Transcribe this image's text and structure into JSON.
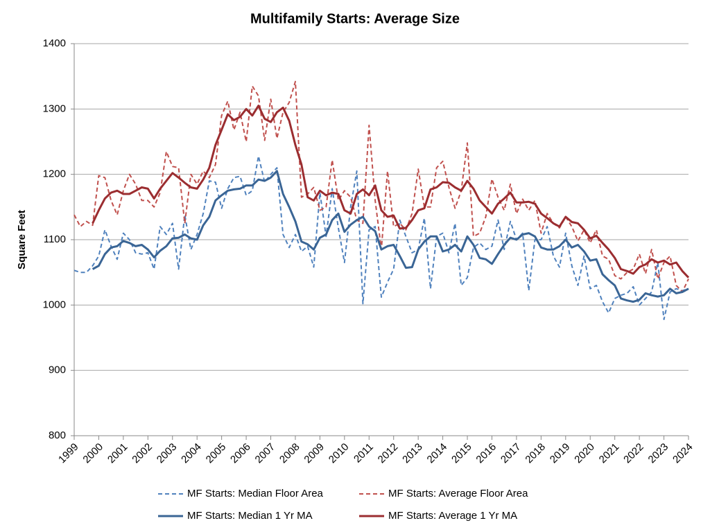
{
  "chart_data": {
    "type": "line",
    "title": "Multifamily Starts: Average Size",
    "y_label": "Square Feet",
    "x": [
      1999,
      1999.25,
      1999.5,
      1999.75,
      2000,
      2000.25,
      2000.5,
      2000.75,
      2001,
      2001.25,
      2001.5,
      2001.75,
      2002,
      2002.25,
      2002.5,
      2002.75,
      2003,
      2003.25,
      2003.5,
      2003.75,
      2004,
      2004.25,
      2004.5,
      2004.75,
      2005,
      2005.25,
      2005.5,
      2005.75,
      2006,
      2006.25,
      2006.5,
      2006.75,
      2007,
      2007.25,
      2007.5,
      2007.75,
      2008,
      2008.25,
      2008.5,
      2008.75,
      2009,
      2009.25,
      2009.5,
      2009.75,
      2010,
      2010.25,
      2010.5,
      2010.75,
      2011,
      2011.25,
      2011.5,
      2011.75,
      2012,
      2012.25,
      2012.5,
      2012.75,
      2013,
      2013.25,
      2013.5,
      2013.75,
      2014,
      2014.25,
      2014.5,
      2014.75,
      2015,
      2015.25,
      2015.5,
      2015.75,
      2016,
      2016.25,
      2016.5,
      2016.75,
      2017,
      2017.25,
      2017.5,
      2017.75,
      2018,
      2018.25,
      2018.5,
      2018.75,
      2019,
      2019.25,
      2019.5,
      2019.75,
      2020,
      2020.25,
      2020.5,
      2020.75,
      2021,
      2021.25,
      2021.5,
      2021.75,
      2022,
      2022.25,
      2022.5,
      2022.75,
      2023,
      2023.25,
      2023.5,
      2023.75,
      2024
    ],
    "series": [
      {
        "name": "MF Starts: Median Floor Area",
        "color": "#4f81bd",
        "dashed": true,
        "values": [
          1053,
          1050,
          1050,
          1060,
          1075,
          1115,
          1090,
          1070,
          1110,
          1100,
          1080,
          1078,
          1080,
          1055,
          1120,
          1108,
          1125,
          1055,
          1138,
          1085,
          1108,
          1140,
          1190,
          1188,
          1148,
          1178,
          1195,
          1197,
          1168,
          1175,
          1228,
          1188,
          1200,
          1210,
          1108,
          1088,
          1108,
          1082,
          1090,
          1058,
          1172,
          1105,
          1178,
          1118,
          1065,
          1150,
          1205,
          1002,
          1115,
          1120,
          1012,
          1035,
          1055,
          1130,
          1105,
          1080,
          1085,
          1133,
          1025,
          1105,
          1110,
          1080,
          1125,
          1030,
          1042,
          1088,
          1095,
          1085,
          1090,
          1130,
          1085,
          1128,
          1100,
          1110,
          1022,
          1100,
          1100,
          1120,
          1075,
          1058,
          1110,
          1060,
          1030,
          1075,
          1025,
          1030,
          1005,
          988,
          1010,
          1015,
          1018,
          1028,
          1000,
          1010,
          1020,
          1065,
          978,
          1020,
          1025,
          1022,
          1025
        ]
      },
      {
        "name": "MF Starts: Average Floor Area",
        "color": "#c0504d",
        "dashed": true,
        "values": [
          1138,
          1120,
          1128,
          1122,
          1198,
          1195,
          1160,
          1138,
          1175,
          1200,
          1185,
          1160,
          1160,
          1150,
          1172,
          1235,
          1212,
          1210,
          1125,
          1200,
          1185,
          1205,
          1195,
          1215,
          1290,
          1312,
          1268,
          1295,
          1250,
          1335,
          1320,
          1252,
          1315,
          1255,
          1295,
          1310,
          1342,
          1165,
          1170,
          1180,
          1145,
          1150,
          1222,
          1160,
          1175,
          1165,
          1130,
          1125,
          1275,
          1160,
          1085,
          1205,
          1120,
          1125,
          1115,
          1140,
          1208,
          1150,
          1150,
          1210,
          1220,
          1180,
          1148,
          1175,
          1248,
          1105,
          1110,
          1135,
          1193,
          1165,
          1145,
          1185,
          1140,
          1162,
          1145,
          1160,
          1110,
          1140,
          1125,
          1118,
          1135,
          1120,
          1098,
          1115,
          1095,
          1115,
          1075,
          1070,
          1045,
          1040,
          1050,
          1055,
          1078,
          1048,
          1085,
          1040,
          1065,
          1075,
          1030,
          1020,
          1040
        ]
      },
      {
        "name": "MF Starts: Median 1 Yr MA",
        "color": "#3a6595",
        "dashed": false,
        "values": [
          null,
          null,
          null,
          1055,
          1060,
          1078,
          1088,
          1090,
          1098,
          1095,
          1090,
          1092,
          1085,
          1073,
          1083,
          1090,
          1102,
          1103,
          1108,
          1102,
          1100,
          1122,
          1135,
          1160,
          1168,
          1175,
          1177,
          1178,
          1183,
          1183,
          1192,
          1190,
          1195,
          1205,
          1170,
          1150,
          1128,
          1097,
          1093,
          1085,
          1103,
          1108,
          1130,
          1140,
          1112,
          1123,
          1130,
          1135,
          1120,
          1113,
          1085,
          1090,
          1092,
          1075,
          1057,
          1058,
          1085,
          1097,
          1105,
          1105,
          1082,
          1085,
          1092,
          1082,
          1105,
          1092,
          1072,
          1070,
          1063,
          1078,
          1092,
          1103,
          1100,
          1108,
          1110,
          1105,
          1088,
          1085,
          1085,
          1090,
          1100,
          1088,
          1092,
          1082,
          1068,
          1070,
          1047,
          1038,
          1030,
          1010,
          1007,
          1005,
          1008,
          1018,
          1015,
          1013,
          1015,
          1025,
          1018,
          1020,
          1025
        ]
      },
      {
        "name": "MF Starts: Average 1 Yr MA",
        "color": "#9b2d30",
        "dashed": false,
        "values": [
          null,
          null,
          null,
          1125,
          1145,
          1163,
          1172,
          1175,
          1170,
          1170,
          1175,
          1180,
          1178,
          1163,
          1178,
          1190,
          1202,
          1195,
          1187,
          1180,
          1178,
          1192,
          1210,
          1245,
          1268,
          1292,
          1283,
          1288,
          1300,
          1290,
          1305,
          1285,
          1280,
          1295,
          1302,
          1282,
          1245,
          1215,
          1165,
          1160,
          1175,
          1168,
          1172,
          1170,
          1145,
          1140,
          1170,
          1177,
          1168,
          1183,
          1145,
          1135,
          1137,
          1117,
          1118,
          1130,
          1145,
          1148,
          1177,
          1180,
          1188,
          1187,
          1180,
          1175,
          1190,
          1178,
          1160,
          1150,
          1140,
          1155,
          1163,
          1172,
          1157,
          1157,
          1158,
          1155,
          1140,
          1133,
          1125,
          1120,
          1135,
          1127,
          1125,
          1115,
          1102,
          1106,
          1095,
          1085,
          1072,
          1055,
          1052,
          1048,
          1058,
          1062,
          1070,
          1065,
          1068,
          1062,
          1065,
          1052,
          1042
        ]
      }
    ],
    "xlim": [
      1999,
      2024
    ],
    "xticks": [
      1999,
      2000,
      2001,
      2002,
      2003,
      2004,
      2005,
      2006,
      2007,
      2008,
      2009,
      2010,
      2011,
      2012,
      2013,
      2014,
      2015,
      2016,
      2017,
      2018,
      2019,
      2020,
      2021,
      2022,
      2023,
      2024
    ],
    "ylim": [
      800,
      1400
    ],
    "yticks": [
      800,
      900,
      1000,
      1100,
      1200,
      1300,
      1400
    ],
    "grid": true,
    "legend": "bottom"
  }
}
